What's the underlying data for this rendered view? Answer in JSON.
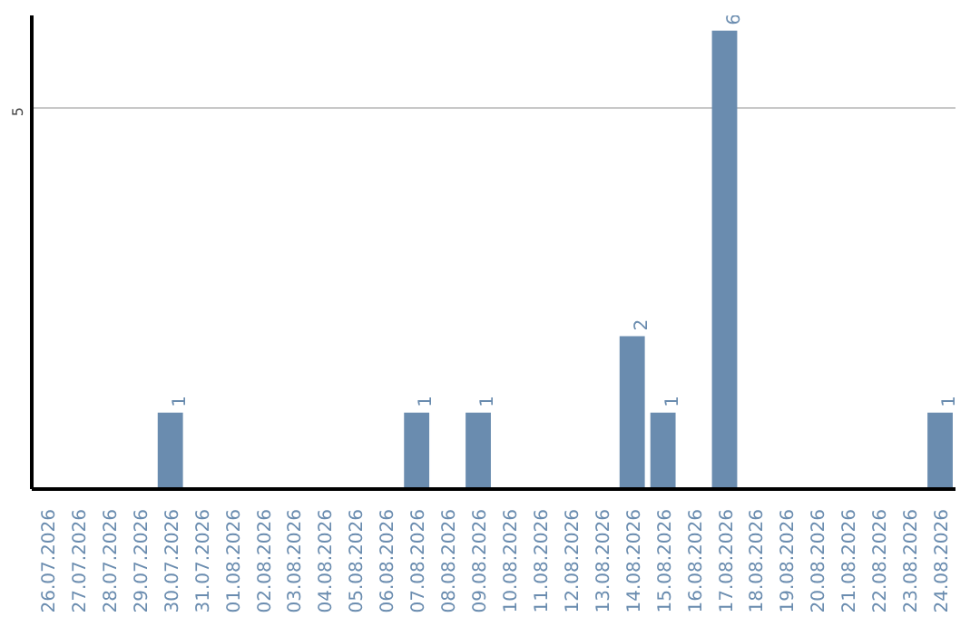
{
  "chart_data": {
    "type": "bar",
    "categories": [
      "26.07.2026",
      "27.07.2026",
      "28.07.2026",
      "29.07.2026",
      "30.07.2026",
      "31.07.2026",
      "01.08.2026",
      "02.08.2026",
      "03.08.2026",
      "04.08.2026",
      "05.08.2026",
      "06.08.2026",
      "07.08.2026",
      "08.08.2026",
      "09.08.2026",
      "10.08.2026",
      "11.08.2026",
      "12.08.2026",
      "13.08.2026",
      "14.08.2026",
      "15.08.2026",
      "16.08.2026",
      "17.08.2026",
      "18.08.2026",
      "19.08.2026",
      "20.08.2026",
      "21.08.2026",
      "22.08.2026",
      "23.08.2026",
      "24.08.2026"
    ],
    "values": [
      0,
      0,
      0,
      0,
      1,
      0,
      0,
      0,
      0,
      0,
      0,
      0,
      1,
      0,
      1,
      0,
      0,
      0,
      0,
      2,
      1,
      0,
      6,
      0,
      0,
      0,
      0,
      0,
      0,
      1
    ],
    "value_labels": [
      null,
      null,
      null,
      null,
      "1",
      null,
      null,
      null,
      null,
      null,
      null,
      null,
      "1",
      null,
      "1",
      null,
      null,
      null,
      null,
      "2",
      "1",
      null,
      "6",
      null,
      null,
      null,
      null,
      null,
      null,
      "1"
    ],
    "color": "#6a8caf",
    "ylim": [
      0,
      6.2
    ],
    "yticks": [
      5
    ],
    "grid": "y"
  }
}
